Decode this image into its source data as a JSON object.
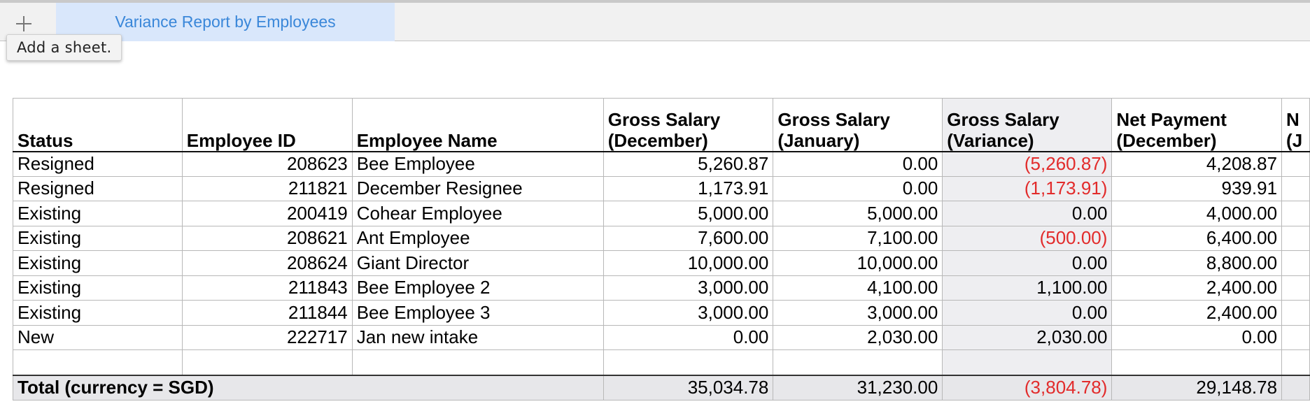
{
  "tabbar": {
    "add_sheet_tooltip": "Add a sheet.",
    "active_tab": "Variance Report by Employees"
  },
  "table": {
    "headers": [
      "Status",
      "Employee ID",
      "Employee Name",
      "Gross Salary (December)",
      "Gross Salary (January)",
      "Gross Salary (Variance)",
      "Net Payment (December)",
      "N (J"
    ],
    "rows": [
      {
        "status": "Resigned",
        "id": "208623",
        "name": "Bee Employee",
        "dec": "5,260.87",
        "jan": "0.00",
        "var": "(5,260.87)",
        "net": "4,208.87"
      },
      {
        "status": "Resigned",
        "id": "211821",
        "name": "December Resignee",
        "dec": "1,173.91",
        "jan": "0.00",
        "var": "(1,173.91)",
        "net": "939.91"
      },
      {
        "status": "Existing",
        "id": "200419",
        "name": "Cohear Employee",
        "dec": "5,000.00",
        "jan": "5,000.00",
        "var": "0.00",
        "net": "4,000.00"
      },
      {
        "status": "Existing",
        "id": "208621",
        "name": "Ant Employee",
        "dec": "7,600.00",
        "jan": "7,100.00",
        "var": "(500.00)",
        "net": "6,400.00"
      },
      {
        "status": "Existing",
        "id": "208624",
        "name": "Giant Director",
        "dec": "10,000.00",
        "jan": "10,000.00",
        "var": "0.00",
        "net": "8,800.00"
      },
      {
        "status": "Existing",
        "id": "211843",
        "name": "Bee Employee 2",
        "dec": "3,000.00",
        "jan": "4,100.00",
        "var": "1,100.00",
        "net": "2,400.00"
      },
      {
        "status": "Existing",
        "id": "211844",
        "name": "Bee Employee 3",
        "dec": "3,000.00",
        "jan": "3,000.00",
        "var": "0.00",
        "net": "2,400.00"
      },
      {
        "status": "New",
        "id": "222717",
        "name": "Jan new intake",
        "dec": "0.00",
        "jan": "2,030.00",
        "var": "2,030.00",
        "net": "0.00"
      }
    ],
    "total": {
      "label": "Total (currency = SGD)",
      "dec": "35,034.78",
      "jan": "31,230.00",
      "var": "(3,804.78)",
      "net": "29,148.78"
    }
  },
  "colors": {
    "negative": "#e22b2b",
    "tab_text": "#3a87d9",
    "tab_bg": "#d9e7fb"
  },
  "icons": {
    "add_sheet": "plus-icon"
  }
}
